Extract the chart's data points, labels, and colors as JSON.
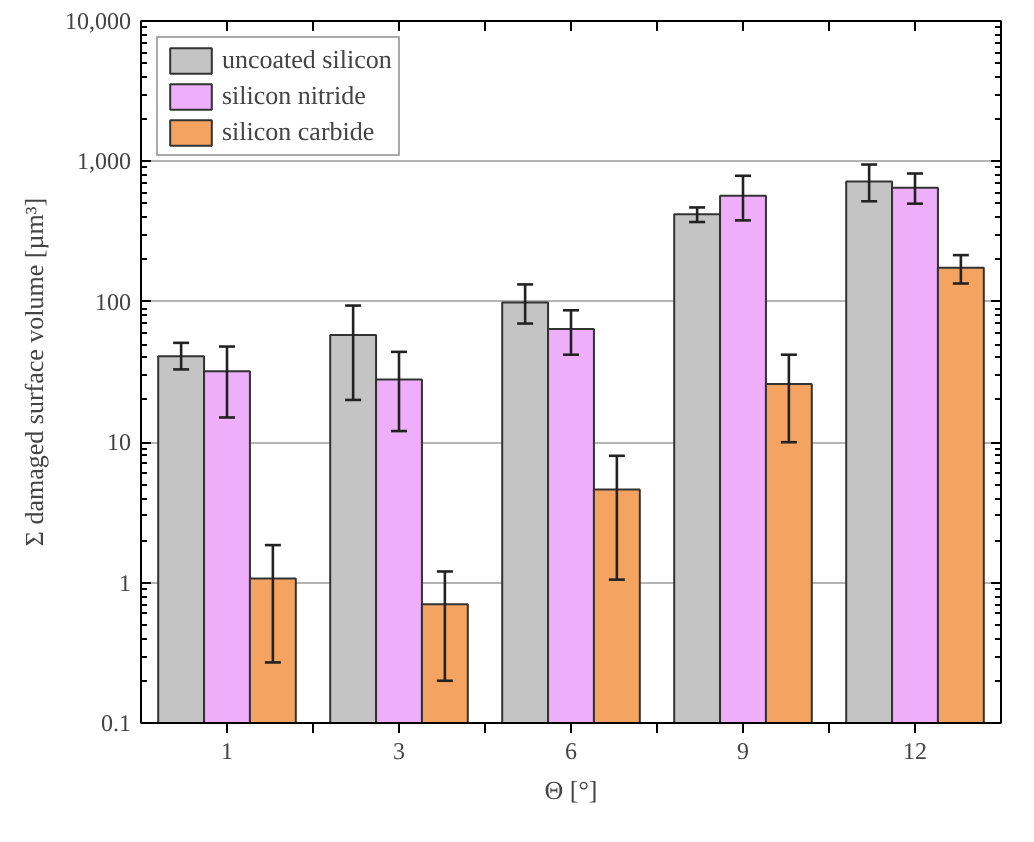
{
  "chart_data": {
    "type": "bar",
    "xlabel": "Θ [°]",
    "ylabel": "Σ damaged surface volume [µm³]",
    "categories": [
      "1",
      "3",
      "6",
      "9",
      "12"
    ],
    "series": [
      {
        "name": "uncoated silicon",
        "color": "#c4c4c4",
        "values": [
          41,
          58,
          99,
          420,
          720
        ],
        "errors": [
          [
            33,
            51
          ],
          [
            20,
            94
          ],
          [
            70,
            133
          ],
          [
            370,
            470
          ],
          [
            520,
            950
          ]
        ]
      },
      {
        "name": "silicon nitride",
        "color": "#eeaefa",
        "values": [
          32,
          28,
          64,
          570,
          650
        ],
        "errors": [
          [
            15,
            48
          ],
          [
            12,
            44
          ],
          [
            42,
            87
          ],
          [
            380,
            790
          ],
          [
            500,
            820
          ]
        ]
      },
      {
        "name": "silicon carbide",
        "color": "#f4a460",
        "values": [
          1.07,
          0.7,
          4.6,
          26,
          175
        ],
        "errors": [
          [
            0.27,
            1.85
          ],
          [
            0.2,
            1.2
          ],
          [
            1.05,
            8
          ],
          [
            10,
            42
          ],
          [
            135,
            215
          ]
        ]
      }
    ],
    "log": true,
    "ylim": [
      0.1,
      10000
    ],
    "yticks": [
      0.1,
      1,
      10,
      100,
      {
        "value": 1000,
        "label": "1,000"
      },
      {
        "value": 10000,
        "label": "10,000"
      }
    ],
    "grid": "y",
    "legend": "top left"
  }
}
